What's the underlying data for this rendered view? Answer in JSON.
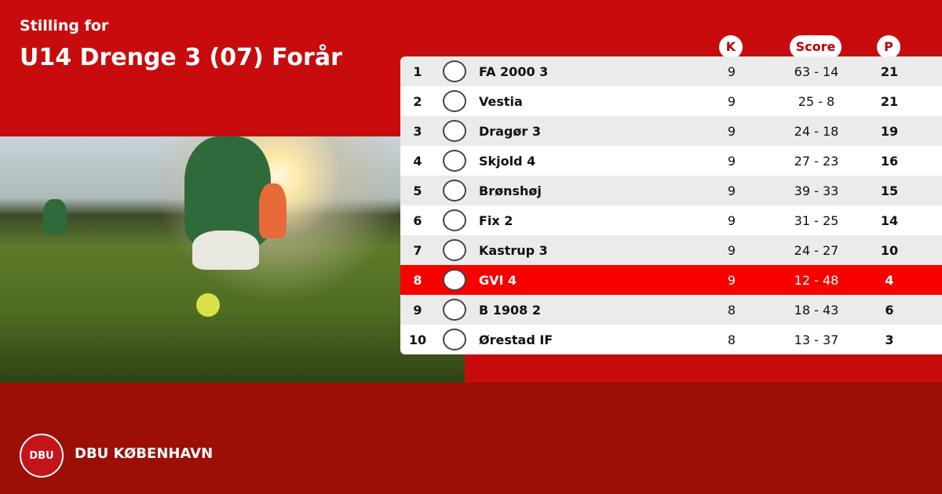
{
  "header": {
    "subtitle": "Stilling for",
    "title": "U14 Drenge 3 (07) Forår"
  },
  "columns": {
    "k": "K",
    "score": "Score",
    "p": "P"
  },
  "rows": [
    {
      "pos": "1",
      "team": "FA 2000 3",
      "k": "9",
      "score": "63 - 14",
      "p": "21"
    },
    {
      "pos": "2",
      "team": "Vestia",
      "k": "9",
      "score": "25 - 8",
      "p": "21"
    },
    {
      "pos": "3",
      "team": "Dragør 3",
      "k": "9",
      "score": "24 - 18",
      "p": "19"
    },
    {
      "pos": "4",
      "team": "Skjold 4",
      "k": "9",
      "score": "27 - 23",
      "p": "16"
    },
    {
      "pos": "5",
      "team": "Brønshøj",
      "k": "9",
      "score": "39 - 33",
      "p": "15"
    },
    {
      "pos": "6",
      "team": "Fix 2",
      "k": "9",
      "score": "31 - 25",
      "p": "14"
    },
    {
      "pos": "7",
      "team": "Kastrup 3",
      "k": "9",
      "score": "24 - 27",
      "p": "10"
    },
    {
      "pos": "8",
      "team": "GVI 4",
      "k": "9",
      "score": "12 - 48",
      "p": "4",
      "highlight": true
    },
    {
      "pos": "9",
      "team": "B 1908 2",
      "k": "8",
      "score": "18 - 43",
      "p": "6"
    },
    {
      "pos": "10",
      "team": "Ørestad IF",
      "k": "8",
      "score": "13 - 37",
      "p": "3"
    }
  ],
  "footer": {
    "brand": "DBU KØBENHAVN",
    "logo_text": "DBU"
  },
  "colors": {
    "primary": "#c80c0e",
    "footer": "#9b0f07",
    "highlight": "#f90000"
  }
}
